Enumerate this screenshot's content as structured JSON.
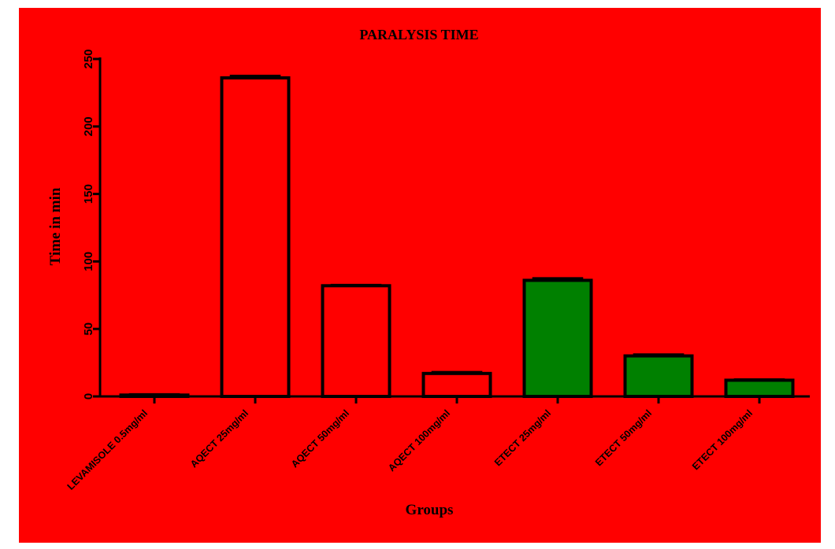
{
  "chart_data": {
    "type": "bar",
    "title": "PARALYSIS TIME",
    "xlabel": "Groups",
    "ylabel": "Time in min",
    "ylim": [
      0,
      250
    ],
    "yticks": [
      0,
      50,
      100,
      150,
      200,
      250
    ],
    "yticks_text": [
      "0",
      "50",
      "100",
      "150",
      "200",
      "250"
    ],
    "grid": false,
    "categories": [
      "LEVAMISOLE 0.5mg/ml",
      "AQECT 25mg/ml",
      "AQECT 50mg/ml",
      "AQECT 100mg/ml",
      "ETECT 25mg/ml",
      "ETECT 50mg/ml",
      "ETECT 100mg/ml"
    ],
    "values": [
      1,
      236,
      82,
      17,
      86,
      30,
      12
    ],
    "errors": [
      0.5,
      1.5,
      0.5,
      1,
      1.5,
      1,
      0.5
    ],
    "bar_colors": [
      "#ff0000",
      "#ff0000",
      "#ff0000",
      "#ff0000",
      "#008000",
      "#008000",
      "#008000"
    ],
    "background_color": "#ff0000"
  }
}
